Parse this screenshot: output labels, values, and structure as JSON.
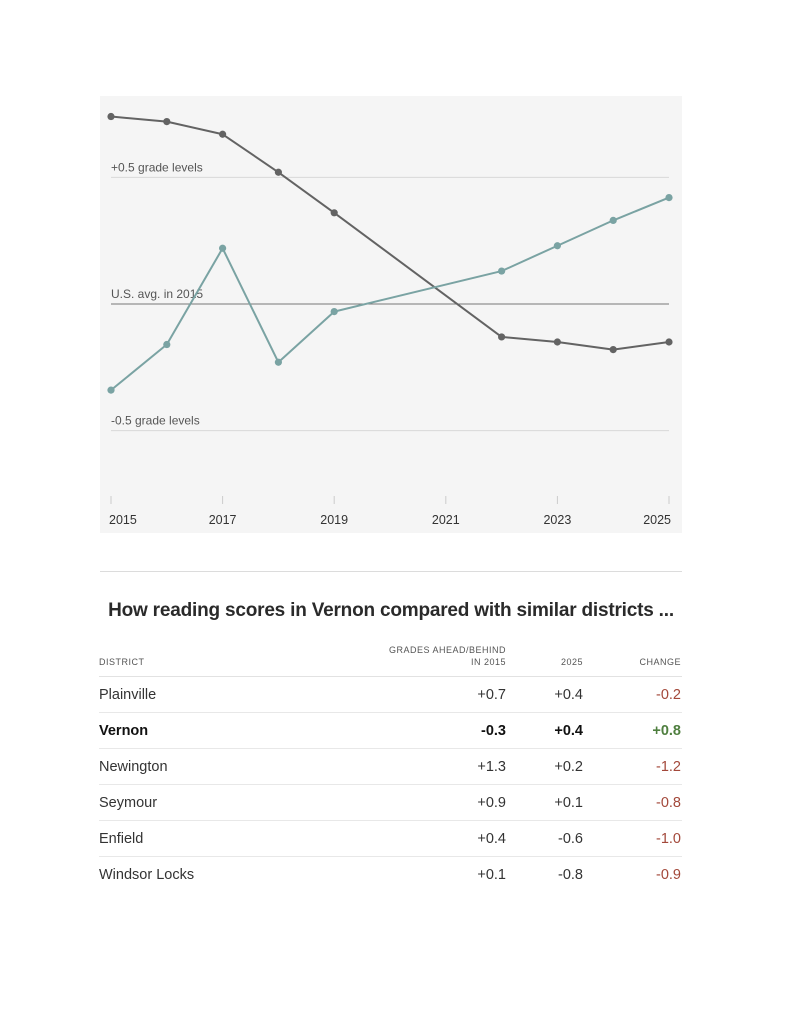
{
  "chart_data": {
    "type": "line",
    "x": [
      2015,
      2016,
      2017,
      2018,
      2019,
      2020,
      2021,
      2022,
      2023,
      2024,
      2025
    ],
    "xticks": [
      "2015",
      "2017",
      "2019",
      "2021",
      "2023",
      "2025"
    ],
    "xlim": [
      2015,
      2025
    ],
    "ylim": [
      -0.75,
      0.75
    ],
    "reference_lines": [
      {
        "value": 0.5,
        "label": "+0.5 grade levels",
        "color": "#d8d8d8"
      },
      {
        "value": 0.0,
        "label": "U.S. avg. in 2015",
        "color": "#777777"
      },
      {
        "value": -0.5,
        "label": "-0.5 grade levels",
        "color": "#d8d8d8"
      }
    ],
    "series": [
      {
        "color": "#636363",
        "points": [
          {
            "x": 2015,
            "y": 0.74
          },
          {
            "x": 2016,
            "y": 0.72
          },
          {
            "x": 2017,
            "y": 0.67
          },
          {
            "x": 2018,
            "y": 0.52
          },
          {
            "x": 2019,
            "y": 0.36
          },
          {
            "x": 2022,
            "y": -0.13
          },
          {
            "x": 2023,
            "y": -0.15
          },
          {
            "x": 2024,
            "y": -0.18
          },
          {
            "x": 2025,
            "y": -0.15
          }
        ]
      },
      {
        "color": "#7aa3a3",
        "points": [
          {
            "x": 2015,
            "y": -0.34
          },
          {
            "x": 2016,
            "y": -0.16
          },
          {
            "x": 2017,
            "y": 0.22
          },
          {
            "x": 2018,
            "y": -0.23
          },
          {
            "x": 2019,
            "y": -0.03
          },
          {
            "x": 2022,
            "y": 0.13
          },
          {
            "x": 2023,
            "y": 0.23
          },
          {
            "x": 2024,
            "y": 0.33
          },
          {
            "x": 2025,
            "y": 0.42
          }
        ]
      }
    ],
    "grid": false
  },
  "table": {
    "title": "How reading scores in Vernon compared with similar districts ...",
    "headers": {
      "district": "DISTRICT",
      "grades_line1": "GRADES AHEAD/BEHIND",
      "grades_line2": "IN 2015",
      "y2025": "2025",
      "change": "CHANGE"
    },
    "rows": [
      {
        "district": "Plainville",
        "v2015": "+0.7",
        "v2025": "+0.4",
        "change": "-0.2",
        "sign": "neg",
        "bold": false
      },
      {
        "district": "Vernon",
        "v2015": "-0.3",
        "v2025": "+0.4",
        "change": "+0.8",
        "sign": "pos",
        "bold": true
      },
      {
        "district": "Newington",
        "v2015": "+1.3",
        "v2025": "+0.2",
        "change": "-1.2",
        "sign": "neg",
        "bold": false
      },
      {
        "district": "Seymour",
        "v2015": "+0.9",
        "v2025": "+0.1",
        "change": "-0.8",
        "sign": "neg",
        "bold": false
      },
      {
        "district": "Enfield",
        "v2015": "+0.4",
        "v2025": "-0.6",
        "change": "-1.0",
        "sign": "neg",
        "bold": false
      },
      {
        "district": "Windsor Locks",
        "v2015": "+0.1",
        "v2025": "-0.8",
        "change": "-0.9",
        "sign": "neg",
        "bold": false
      }
    ]
  }
}
